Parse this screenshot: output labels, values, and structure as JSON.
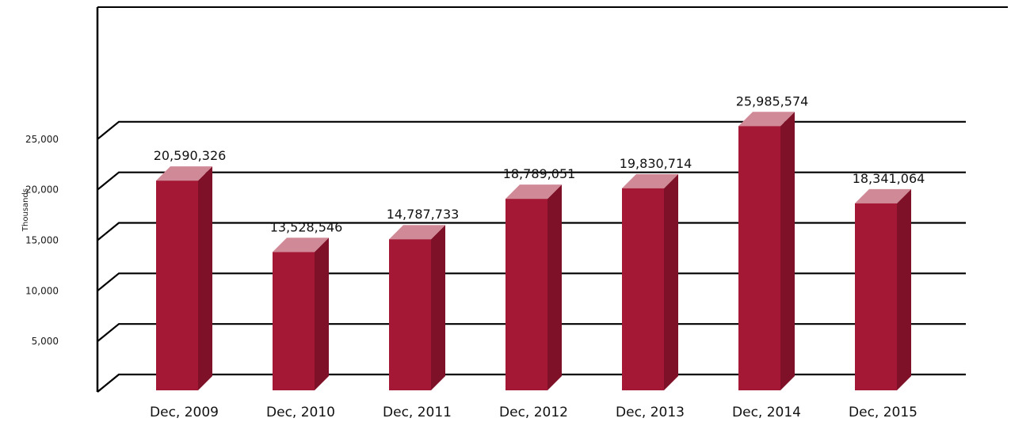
{
  "chart_data": {
    "type": "bar",
    "title": "",
    "xlabel": "",
    "ylabel": "Thousands",
    "categories": [
      "Dec, 2009",
      "Dec, 2010",
      "Dec, 2011",
      "Dec, 2012",
      "Dec, 2013",
      "Dec, 2014",
      "Dec, 2015"
    ],
    "values": [
      20590326,
      13528546,
      14787733,
      18789051,
      19830714,
      25985574,
      18341064
    ],
    "data_labels": [
      "20,590,326",
      "13,528,546",
      "14,787,733",
      "18,789,051",
      "19,830,714",
      "25,985,574",
      "18,341,064"
    ],
    "y_ticks": [
      5000,
      10000,
      15000,
      20000,
      25000
    ],
    "y_tick_labels": [
      "5,000",
      "10,000",
      "15,000",
      "20,000",
      "25,000"
    ],
    "ylim": [
      0,
      30000
    ],
    "value_scale": 1000,
    "grid": true,
    "legend": "none",
    "style": "3d-bar"
  },
  "colors": {
    "bar_front": "#a51835",
    "bar_side": "#7e1027",
    "bar_top": "#d08a97",
    "grid": "#000000"
  }
}
